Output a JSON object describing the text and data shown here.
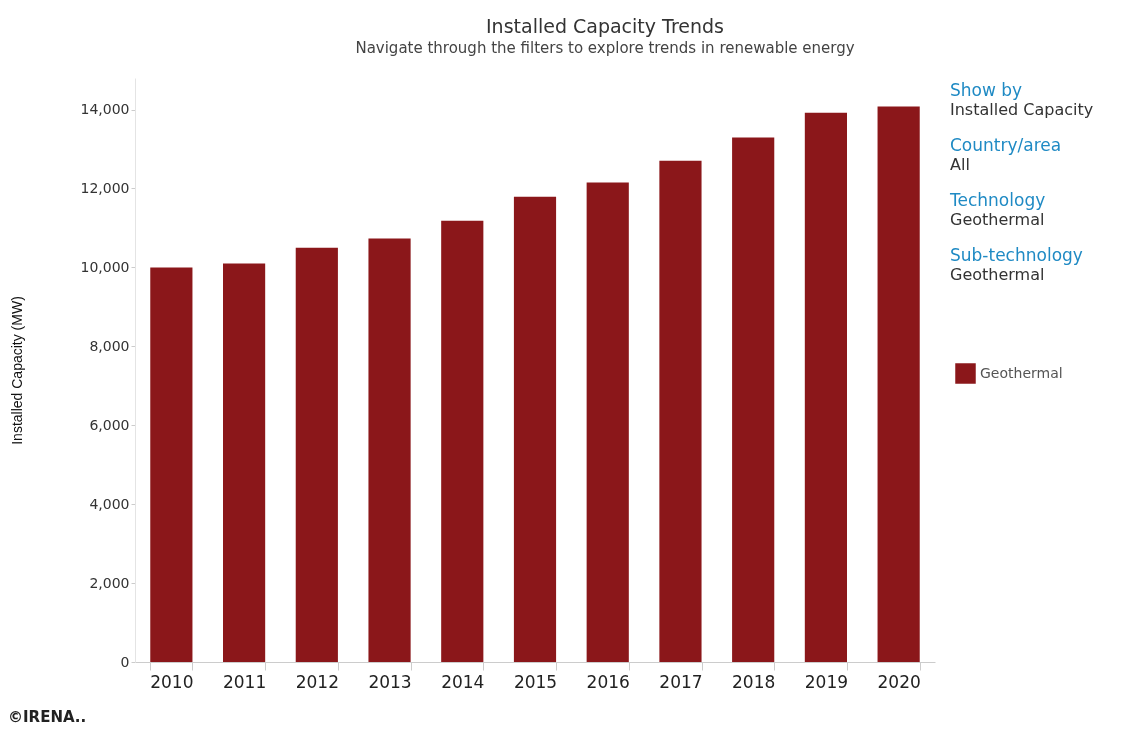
{
  "chart_data": {
    "type": "bar",
    "title": "Installed Capacity Trends",
    "subtitle": "Navigate through the filters to explore trends in renewable energy",
    "ylabel": "Installed Capacity (MW)",
    "categories": [
      "2010",
      "2011",
      "2012",
      "2013",
      "2014",
      "2015",
      "2016",
      "2017",
      "2018",
      "2019",
      "2020"
    ],
    "series": [
      {
        "name": "Geothermal",
        "color": "#8b171a",
        "values": [
          10000,
          10100,
          10500,
          10730,
          11180,
          11790,
          12150,
          12700,
          13290,
          13920,
          14080
        ]
      }
    ],
    "ylim": [
      0,
      14800
    ],
    "yticks": [
      0,
      {
        "value": 2000,
        "label": "2,000"
      },
      {
        "value": 4000,
        "label": "4,000"
      },
      {
        "value": 6000,
        "label": "6,000"
      },
      {
        "value": 8000,
        "label": "8,000"
      },
      {
        "value": 10000,
        "label": "10,000"
      },
      {
        "value": 12000,
        "label": "12,000"
      },
      {
        "value": 14000,
        "label": "14,000"
      }
    ],
    "grid": false,
    "legend": "right",
    "annotations": [
      "Show by",
      "Installed Capacity",
      "Country/area",
      "All",
      "Technology",
      "Geothermal",
      "Sub-technology",
      "Geothermal",
      "©IRENA.."
    ]
  }
}
